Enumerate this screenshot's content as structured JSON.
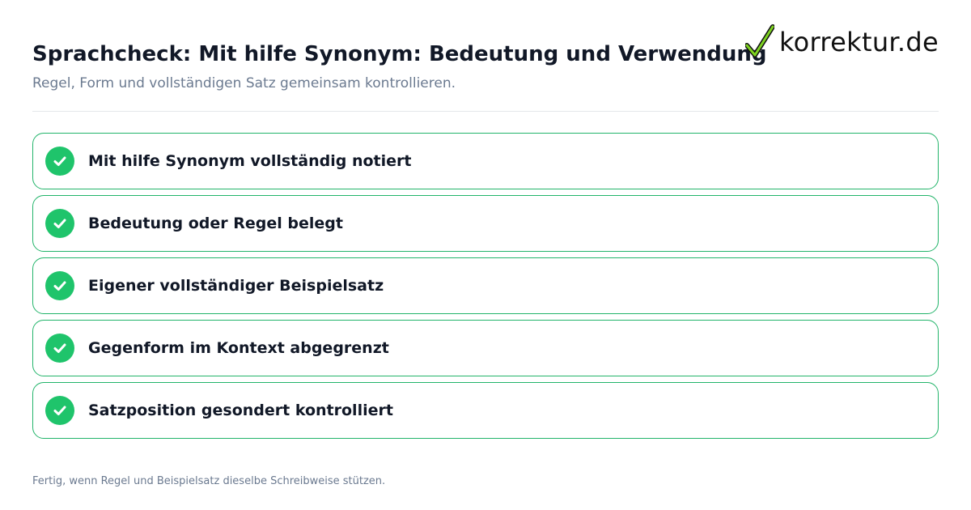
{
  "header": {
    "title": "Sprachcheck: Mit hilfe Synonym: Bedeutung und Verwendung",
    "subtitle": "Regel, Form und vollständigen Satz gemeinsam kontrollieren."
  },
  "logo": {
    "text": "korrektur.de",
    "icon": "checkmark-icon"
  },
  "checklist": {
    "items": [
      {
        "label": "Mit hilfe Synonym vollständig notiert",
        "status": "checked"
      },
      {
        "label": "Bedeutung oder Regel belegt",
        "status": "checked"
      },
      {
        "label": "Eigener vollständiger Beispielsatz",
        "status": "checked"
      },
      {
        "label": "Gegenform im Kontext abgegrenzt",
        "status": "checked"
      },
      {
        "label": "Satzposition gesondert kontrolliert",
        "status": "checked"
      }
    ]
  },
  "footer": {
    "note": "Fertig, wenn Regel und Beispielsatz dieselbe Schreibweise stützen."
  },
  "colors": {
    "accent_green": "#1fc46b",
    "border_green": "#22b46a",
    "title_text": "#111827",
    "muted_text": "#6b7a90"
  }
}
